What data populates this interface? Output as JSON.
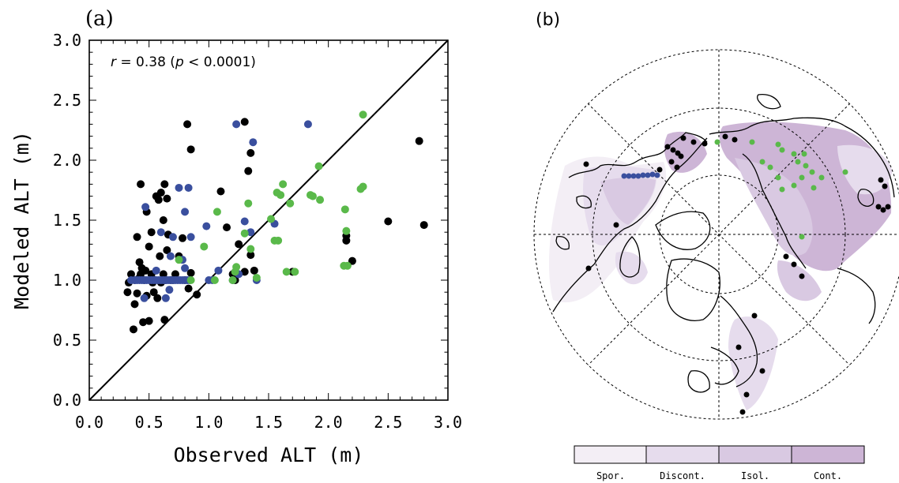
{
  "panel_a_label": "(a)",
  "panel_b_label": "(b)",
  "colors": {
    "black_sites": "#000000",
    "blue_sites": "#3a4f9e",
    "green_sites": "#5ab94a",
    "spor": "#f3eef5",
    "discont": "#e6dced",
    "isol": "#d9c9e2",
    "cont": "#cdb5d6"
  },
  "chart_data": [
    {
      "type": "scatter",
      "panel": "(a)",
      "xlabel": "Observed ALT (m)",
      "ylabel": "Modeled ALT (m)",
      "xlim": [
        0,
        3
      ],
      "ylim": [
        0,
        3
      ],
      "xticks": [
        "0.0",
        "0.5",
        "1.0",
        "1.5",
        "2.0",
        "2.5",
        "3.0"
      ],
      "yticks": [
        "0.0",
        "0.5",
        "1.0",
        "1.5",
        "2.0",
        "2.5",
        "3.0"
      ],
      "annotation": {
        "r_symbol": "r",
        "r_value": " = 0.38 (",
        "p_symbol": "p",
        "p_value": " < 0.0001)"
      },
      "reference_line": "1:1",
      "grid": false,
      "series": [
        {
          "color": "black",
          "points": [
            [
              0.33,
              0.98
            ],
            [
              0.35,
              1.05
            ],
            [
              0.32,
              0.9
            ],
            [
              0.37,
              0.59
            ],
            [
              0.38,
              1.0
            ],
            [
              0.38,
              0.8
            ],
            [
              0.4,
              0.89
            ],
            [
              0.4,
              1.36
            ],
            [
              0.42,
              1.15
            ],
            [
              0.42,
              1.02
            ],
            [
              0.43,
              1.8
            ],
            [
              0.43,
              1.05
            ],
            [
              0.44,
              1.1
            ],
            [
              0.45,
              0.65
            ],
            [
              0.46,
              1.0
            ],
            [
              0.47,
              1.08
            ],
            [
              0.48,
              0.87
            ],
            [
              0.48,
              1.57
            ],
            [
              0.5,
              1.28
            ],
            [
              0.5,
              0.66
            ],
            [
              0.52,
              1.05
            ],
            [
              0.52,
              1.4
            ],
            [
              0.53,
              0.98
            ],
            [
              0.54,
              0.9
            ],
            [
              0.55,
              1.0
            ],
            [
              0.56,
              1.7
            ],
            [
              0.57,
              0.85
            ],
            [
              0.58,
              1.67
            ],
            [
              0.59,
              1.2
            ],
            [
              0.6,
              1.73
            ],
            [
              0.6,
              0.98
            ],
            [
              0.62,
              1.05
            ],
            [
              0.62,
              1.5
            ],
            [
              0.63,
              1.8
            ],
            [
              0.63,
              0.67
            ],
            [
              0.64,
              1.0
            ],
            [
              0.65,
              1.25
            ],
            [
              0.65,
              1.68
            ],
            [
              0.66,
              1.38
            ],
            [
              0.68,
              1.0
            ],
            [
              0.7,
              1.0
            ],
            [
              0.72,
              1.05
            ],
            [
              0.75,
              1.2
            ],
            [
              0.78,
              1.35
            ],
            [
              0.8,
              1.0
            ],
            [
              0.82,
              2.3
            ],
            [
              0.83,
              0.93
            ],
            [
              0.85,
              2.09
            ],
            [
              0.85,
              1.06
            ],
            [
              0.9,
              0.88
            ],
            [
              1.1,
              1.74
            ],
            [
              1.15,
              1.44
            ],
            [
              1.2,
              1.05
            ],
            [
              1.22,
              1.0
            ],
            [
              1.25,
              1.3
            ],
            [
              1.3,
              2.32
            ],
            [
              1.3,
              1.07
            ],
            [
              1.33,
              1.91
            ],
            [
              1.35,
              2.06
            ],
            [
              1.35,
              1.21
            ],
            [
              1.38,
              1.08
            ],
            [
              1.7,
              1.07
            ],
            [
              2.15,
              1.33
            ],
            [
              2.15,
              1.37
            ],
            [
              2.2,
              1.16
            ],
            [
              2.5,
              1.49
            ],
            [
              2.76,
              2.16
            ],
            [
              2.8,
              1.46
            ]
          ]
        },
        {
          "color": "blue",
          "points": [
            [
              0.35,
              1.0
            ],
            [
              0.38,
              1.0
            ],
            [
              0.4,
              1.0
            ],
            [
              0.42,
              1.0
            ],
            [
              0.44,
              1.0
            ],
            [
              0.46,
              1.0
            ],
            [
              0.48,
              1.0
            ],
            [
              0.5,
              1.0
            ],
            [
              0.52,
              1.0
            ],
            [
              0.54,
              1.0
            ],
            [
              0.56,
              1.0
            ],
            [
              0.58,
              1.0
            ],
            [
              0.6,
              1.0
            ],
            [
              0.62,
              1.0
            ],
            [
              0.64,
              1.0
            ],
            [
              0.66,
              1.0
            ],
            [
              0.68,
              1.0
            ],
            [
              0.7,
              1.0
            ],
            [
              0.72,
              1.0
            ],
            [
              0.74,
              1.0
            ],
            [
              0.76,
              1.0
            ],
            [
              0.78,
              1.0
            ],
            [
              0.8,
              1.0
            ],
            [
              0.82,
              1.0
            ],
            [
              0.84,
              1.0
            ],
            [
              0.47,
              1.61
            ],
            [
              0.6,
              1.4
            ],
            [
              0.67,
              0.92
            ],
            [
              0.7,
              1.36
            ],
            [
              0.75,
              1.77
            ],
            [
              0.8,
              1.57
            ],
            [
              0.83,
              1.77
            ],
            [
              0.85,
              1.36
            ],
            [
              0.78,
              1.17
            ],
            [
              0.64,
              0.85
            ],
            [
              0.46,
              0.85
            ],
            [
              0.8,
              1.1
            ],
            [
              0.56,
              1.08
            ],
            [
              0.68,
              1.2
            ],
            [
              0.98,
              1.45
            ],
            [
              1.0,
              1.0
            ],
            [
              1.03,
              1.0
            ],
            [
              1.08,
              1.08
            ],
            [
              1.2,
              1.0
            ],
            [
              1.23,
              2.3
            ],
            [
              1.25,
              1.05
            ],
            [
              1.3,
              1.49
            ],
            [
              1.35,
              1.4
            ],
            [
              1.37,
              2.15
            ],
            [
              1.4,
              1.0
            ],
            [
              1.55,
              1.47
            ],
            [
              1.83,
              2.3
            ]
          ]
        },
        {
          "color": "green",
          "points": [
            [
              0.75,
              1.17
            ],
            [
              0.85,
              1.0
            ],
            [
              0.96,
              1.28
            ],
            [
              1.05,
              1.0
            ],
            [
              1.07,
              1.57
            ],
            [
              1.2,
              1.0
            ],
            [
              1.22,
              1.07
            ],
            [
              1.23,
              1.11
            ],
            [
              1.3,
              1.39
            ],
            [
              1.33,
              1.64
            ],
            [
              1.35,
              1.26
            ],
            [
              1.4,
              1.02
            ],
            [
              1.52,
              1.51
            ],
            [
              1.55,
              1.33
            ],
            [
              1.57,
              1.73
            ],
            [
              1.58,
              1.33
            ],
            [
              1.6,
              1.71
            ],
            [
              1.62,
              1.8
            ],
            [
              1.65,
              1.07
            ],
            [
              1.68,
              1.64
            ],
            [
              1.72,
              1.07
            ],
            [
              1.85,
              1.71
            ],
            [
              1.87,
              1.7
            ],
            [
              1.92,
              1.95
            ],
            [
              1.93,
              1.67
            ],
            [
              2.13,
              1.12
            ],
            [
              2.14,
              1.59
            ],
            [
              2.15,
              1.41
            ],
            [
              2.16,
              1.12
            ],
            [
              2.27,
              1.76
            ],
            [
              2.29,
              1.78
            ],
            [
              2.29,
              2.38
            ]
          ]
        }
      ]
    },
    {
      "type": "map",
      "panel": "(b)",
      "legend": [
        "Spor.",
        "Discont.",
        "Isol.",
        "Cont."
      ]
    }
  ]
}
